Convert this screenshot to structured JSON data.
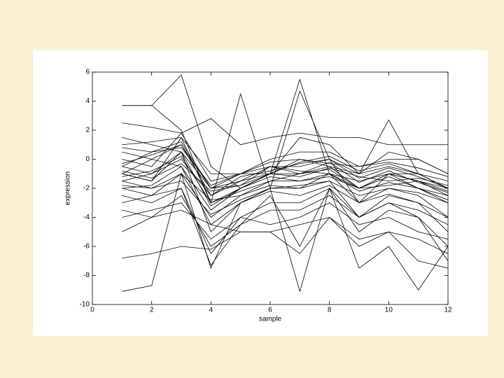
{
  "chart_data": {
    "type": "line",
    "xlabel": "sample",
    "ylabel": "expression",
    "x": [
      1,
      2,
      3,
      4,
      5,
      6,
      7,
      8,
      9,
      10,
      11,
      12
    ],
    "xlim": [
      0,
      12
    ],
    "xticks": [
      0,
      2,
      4,
      6,
      8,
      10,
      12
    ],
    "ylim": [
      -10,
      6
    ],
    "yticks": [
      -10,
      -8,
      -6,
      -4,
      -2,
      0,
      2,
      4,
      6
    ],
    "series": [
      {
        "color": "#000000",
        "values": [
          3.7,
          3.7,
          5.8,
          -0.5,
          -2,
          -1,
          5.5,
          -1,
          -2,
          -1,
          -1.5,
          -2
        ]
      },
      {
        "color": "#000000",
        "values": [
          3.7,
          3.7,
          2,
          -3,
          4.5,
          -2,
          4.7,
          0,
          -3,
          -1,
          -1,
          -2
        ]
      },
      {
        "color": "#000000",
        "values": [
          -9.1,
          -8.7,
          -1,
          -7.5,
          -3,
          -2,
          -9.1,
          -2,
          -7.5,
          -6,
          -9,
          -6
        ]
      },
      {
        "color": "#000000",
        "values": [
          -6.8,
          -6.5,
          -6,
          -6.2,
          -5,
          -5,
          -6.5,
          -4,
          -6,
          -5,
          -7,
          -7.5
        ]
      },
      {
        "color": "#000000",
        "values": [
          -1,
          -1.5,
          1.5,
          -3,
          -2,
          -1,
          0,
          -0.5,
          -1,
          2.7,
          -1,
          -2
        ]
      },
      {
        "color": "#000000",
        "values": [
          2.5,
          2.2,
          1.8,
          2.8,
          1,
          1.5,
          1.8,
          1.5,
          1.5,
          1,
          1,
          1
        ]
      },
      {
        "color": "#000000",
        "values": [
          -1,
          0,
          -0.5,
          -3.5,
          -2,
          -1,
          -1,
          -0.5,
          -2,
          -1,
          -2,
          -3
        ]
      },
      {
        "color": "#000000",
        "values": [
          -0.5,
          -1,
          0,
          -2.5,
          -1.5,
          -0.5,
          -0.8,
          -1,
          -1.5,
          -1,
          -1.5,
          -2.5
        ]
      },
      {
        "color": "#000000",
        "values": [
          -2,
          -2.5,
          -1,
          -4,
          -2.5,
          -1.5,
          -1.5,
          -1,
          -3,
          -2,
          -2.5,
          -4
        ]
      },
      {
        "color": "#000000",
        "values": [
          0.5,
          0,
          1,
          -2,
          -1,
          -0.5,
          -0.5,
          0,
          -1,
          -0.5,
          -1,
          -1.5
        ]
      },
      {
        "color": "#000000",
        "values": [
          -1.5,
          -1,
          0.5,
          -5,
          -3,
          -2,
          -2,
          -1.5,
          -4,
          -2.5,
          -3,
          -5
        ]
      },
      {
        "color": "#000000",
        "values": [
          -3,
          -2.5,
          -2,
          -6.5,
          -4,
          -3,
          -3,
          -2,
          -5,
          -3.5,
          -4,
          -6
        ]
      },
      {
        "color": "#000000",
        "values": [
          1,
          1.2,
          1.5,
          -1,
          -1,
          0,
          0.5,
          0.5,
          -0.5,
          0,
          0,
          -1
        ]
      },
      {
        "color": "#000000",
        "values": [
          -1.2,
          -0.8,
          0.2,
          -3,
          -2.2,
          -1.5,
          -1,
          -0.7,
          -2,
          -1.2,
          -2,
          -2.5
        ]
      },
      {
        "color": "#000000",
        "values": [
          -0.8,
          -1.3,
          -0.3,
          -2.2,
          -1.8,
          -1,
          -1.2,
          -0.6,
          -1.2,
          -1.5,
          -1.3,
          -1.8
        ]
      },
      {
        "color": "#000000",
        "values": [
          -4,
          -3.5,
          -3,
          -5.5,
          -4,
          -4.5,
          -4,
          -3,
          -4.5,
          -4,
          -5,
          -5.5
        ]
      },
      {
        "color": "#000000",
        "values": [
          0,
          -0.5,
          1.8,
          -1.5,
          -1,
          -1,
          -0.2,
          0.2,
          -0.8,
          -0.3,
          -1,
          -2
        ]
      },
      {
        "color": "#000000",
        "values": [
          -1.8,
          -2,
          -1.5,
          -3.8,
          -2.8,
          -2,
          -1.8,
          -1.5,
          -2.5,
          -2,
          -2.3,
          -3
        ]
      },
      {
        "color": "#000000",
        "values": [
          -2.5,
          -3,
          -2,
          -7.3,
          -4.5,
          -2.5,
          -6,
          -2,
          -4,
          -3,
          -4,
          -7
        ]
      },
      {
        "color": "#000000",
        "values": [
          1.5,
          1,
          0.5,
          -2,
          -1.5,
          -1,
          1.5,
          1,
          -1,
          0.5,
          0,
          -1
        ]
      },
      {
        "color": "#000000",
        "values": [
          -0.3,
          0.3,
          1,
          -2.5,
          -1.2,
          -0.8,
          -0.3,
          0,
          -1.3,
          -0.6,
          -1.2,
          -2
        ]
      },
      {
        "color": "#000000",
        "values": [
          -1,
          -1.5,
          0.5,
          -3.2,
          -2,
          -1.2,
          -1.5,
          -1.2,
          -2,
          -1.8,
          -1.5,
          -2.2
        ]
      },
      {
        "color": "#000000",
        "values": [
          -5,
          -4,
          -3.5,
          -4.5,
          -5,
          -5,
          -4.5,
          -4,
          -5.5,
          -5,
          -5.5,
          -6.5
        ]
      },
      {
        "color": "#000000",
        "values": [
          -2,
          -1.8,
          -0.5,
          -4.5,
          -3,
          -2.2,
          -2.5,
          -1.8,
          -3,
          -2.4,
          -3,
          -4
        ]
      },
      {
        "color": "#000000",
        "values": [
          0.8,
          0.5,
          0.8,
          -1.8,
          -1,
          -0.2,
          0,
          -0.3,
          -0.5,
          -0.2,
          -0.6,
          -1.2
        ]
      },
      {
        "color": "#000000",
        "values": [
          -1.5,
          -2,
          -1,
          -2.8,
          -2.5,
          -1.8,
          -2,
          -1,
          -2.2,
          -1.6,
          -2,
          -2.8
        ]
      },
      {
        "color": "#000000",
        "values": [
          -3.5,
          -4,
          -2.5,
          -6,
          -4.5,
          -3.5,
          -3.5,
          -2.5,
          -4,
          -3,
          -3.5,
          -4.5
        ]
      },
      {
        "color": "#000000",
        "values": [
          -0.5,
          0.5,
          1.2,
          -2,
          -1.8,
          -0.5,
          -1,
          -0.2,
          -1.6,
          -0.8,
          -1.6,
          -2.3
        ]
      }
    ]
  }
}
